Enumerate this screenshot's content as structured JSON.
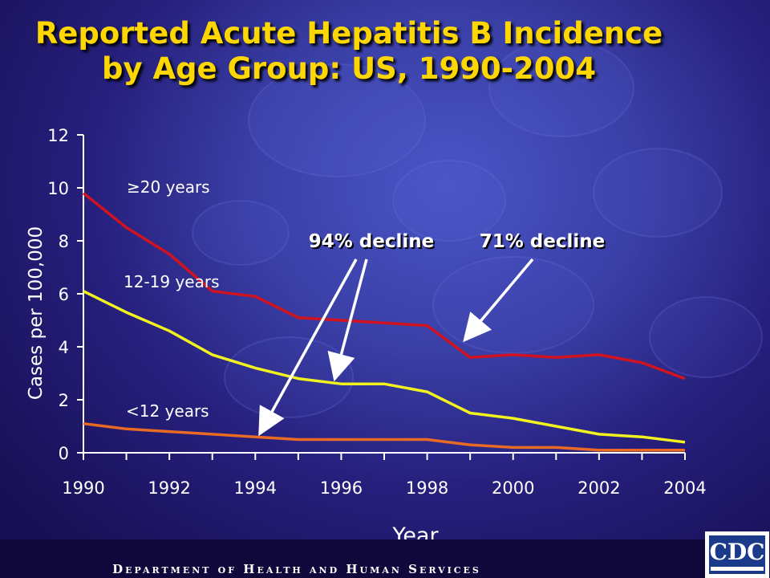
{
  "slide": {
    "title_line1": "Reported Acute Hepatitis B Incidence",
    "title_line2": "by Age Group:  US, 1990-2004",
    "footer": "Department of Health and Human Services",
    "logo_text": "CDC"
  },
  "colors": {
    "title": "#ffd700",
    "series_adult": "#d0131f",
    "series_teen": "#f2f21e",
    "series_child": "#e86a24",
    "axis": "#ffffff",
    "arrow": "#ffffff"
  },
  "chart_data": {
    "type": "line",
    "xlabel": "Year",
    "ylabel": "Cases per 100,000",
    "xlim": [
      1990,
      2004
    ],
    "ylim": [
      0,
      12
    ],
    "x_ticks": [
      "1990",
      "1992",
      "1994",
      "1996",
      "1998",
      "2000",
      "2002",
      "2004"
    ],
    "y_ticks": [
      "0",
      "2",
      "4",
      "6",
      "8",
      "10",
      "12"
    ],
    "grid": false,
    "legend": "none",
    "x": [
      1990,
      1991,
      1992,
      1993,
      1994,
      1995,
      1996,
      1997,
      1998,
      1999,
      2000,
      2001,
      2002,
      2003,
      2004
    ],
    "series": [
      {
        "name": "≥20 years",
        "color": "#d0131f",
        "values": [
          9.8,
          8.5,
          7.5,
          6.1,
          5.9,
          5.1,
          5.0,
          4.9,
          4.8,
          3.6,
          3.7,
          3.6,
          3.7,
          3.4,
          2.8
        ]
      },
      {
        "name": "12-19 years",
        "color": "#f2f21e",
        "values": [
          6.1,
          5.3,
          4.6,
          3.7,
          3.2,
          2.8,
          2.6,
          2.6,
          2.3,
          1.5,
          1.3,
          1.0,
          0.7,
          0.6,
          0.4
        ]
      },
      {
        "name": "<12 years",
        "color": "#e86a24",
        "values": [
          1.1,
          0.9,
          0.8,
          0.7,
          0.6,
          0.5,
          0.5,
          0.5,
          0.5,
          0.3,
          0.2,
          0.2,
          0.1,
          0.1,
          0.1
        ]
      }
    ],
    "annotations": [
      {
        "text": "94% decline",
        "targets": [
          [
            1994.2,
            1.0
          ],
          [
            1995.9,
            3.1
          ]
        ]
      },
      {
        "text": "71% decline",
        "targets": [
          [
            1999.0,
            4.5
          ]
        ]
      }
    ]
  }
}
